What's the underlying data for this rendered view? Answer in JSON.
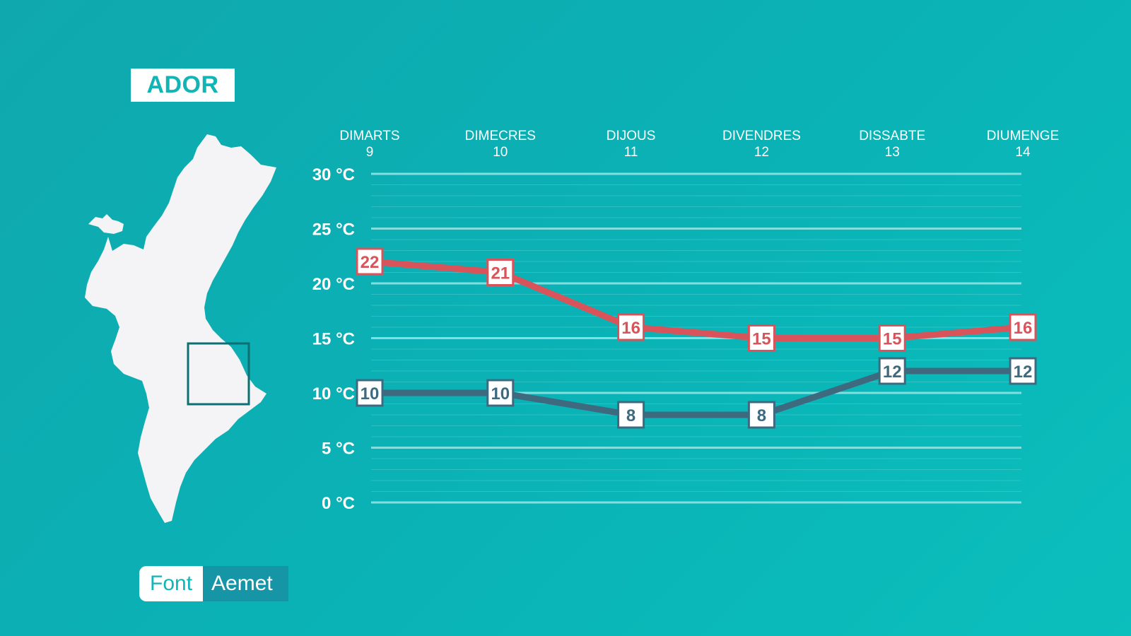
{
  "location": {
    "name": "ADOR"
  },
  "source": {
    "label": "Font",
    "value": "Aemet"
  },
  "map": {
    "icon": "valencian-community-map-icon",
    "fill": "#f4f4f6",
    "highlight_color": "#0d6f73"
  },
  "colors": {
    "max_series": "#d9545a",
    "min_series": "#3e6a80",
    "grid": "#8fe3e3"
  },
  "chart_data": {
    "type": "line",
    "categories": [
      {
        "day": "DIMARTS",
        "date": "9"
      },
      {
        "day": "DIMECRES",
        "date": "10"
      },
      {
        "day": "DIJOUS",
        "date": "11"
      },
      {
        "day": "DIVENDRES",
        "date": "12"
      },
      {
        "day": "DISSABTE",
        "date": "13"
      },
      {
        "day": "DIUMENGE",
        "date": "14"
      }
    ],
    "series": [
      {
        "values": [
          22,
          21,
          16,
          15,
          15,
          16
        ]
      },
      {
        "values": [
          10,
          10,
          8,
          8,
          12,
          12
        ]
      }
    ],
    "y_ticks": [
      "30 °C",
      "25 °C",
      "20 °C",
      "15 °C",
      "10 °C",
      "5 °C",
      "0 °C"
    ],
    "ylim": [
      0,
      30
    ],
    "grid": true
  }
}
